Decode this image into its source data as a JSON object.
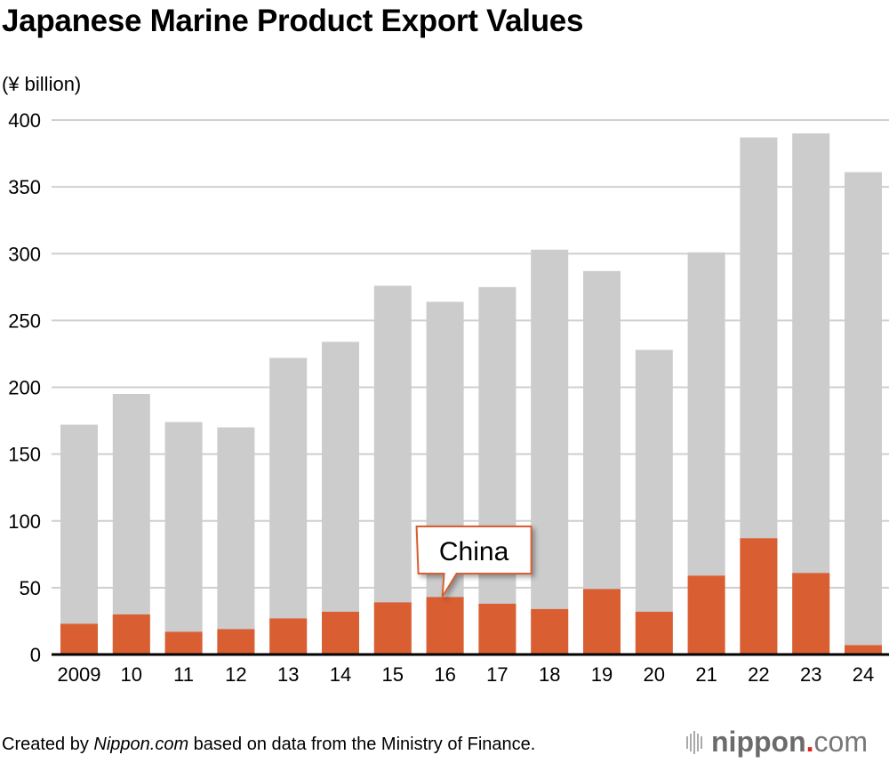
{
  "title": "Japanese Marine Product Export Values",
  "unit_label": "(¥ billion)",
  "footer": {
    "prefix": "Created by ",
    "site": "Nippon.com",
    "suffix": " based on data from the Ministry of Finance."
  },
  "logo": {
    "name": "nippon",
    "dot": ".",
    "tld": "com"
  },
  "chart_data": {
    "type": "bar",
    "stacked": false,
    "categories": [
      "2009",
      "10",
      "11",
      "12",
      "13",
      "14",
      "15",
      "16",
      "17",
      "18",
      "19",
      "20",
      "21",
      "22",
      "23",
      "24"
    ],
    "series": [
      {
        "name": "",
        "color": "#cccccc",
        "values": [
          172,
          195,
          174,
          170,
          222,
          234,
          276,
          264,
          275,
          303,
          287,
          228,
          301,
          387,
          390,
          361
        ]
      },
      {
        "name": "China",
        "color": "#d95f32",
        "values": [
          23,
          30,
          17,
          19,
          27,
          32,
          39,
          43,
          38,
          34,
          49,
          32,
          59,
          87,
          61,
          7
        ]
      }
    ],
    "ylim": [
      0,
      400
    ],
    "yticks": [
      0,
      50,
      100,
      150,
      200,
      250,
      300,
      350,
      400
    ],
    "grid": true,
    "annotation": {
      "text": "China",
      "category": "16"
    }
  }
}
